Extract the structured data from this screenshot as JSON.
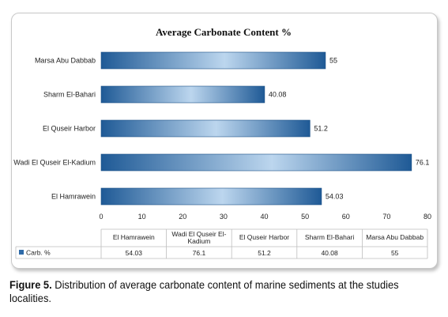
{
  "chart_data": {
    "type": "bar",
    "orientation": "horizontal",
    "title": "Average Carbonate Content  %",
    "categories": [
      "El Hamrawein",
      "Wadi El Quseir El-Kadium",
      "El Quseir Harbor",
      "Sharm El-Bahari",
      "Marsa Abu Dabbab"
    ],
    "table_categories": [
      [
        "El Hamrawein"
      ],
      [
        "Wadi El Quseir El-",
        "Kadium"
      ],
      [
        "El Quseir Harbor"
      ],
      [
        "Sharm El-Bahari"
      ],
      [
        "Marsa Abu Dabbab"
      ]
    ],
    "series": [
      {
        "name": "Carb. %",
        "values": [
          54.03,
          76.1,
          51.2,
          40.08,
          55
        ]
      }
    ],
    "value_labels": [
      "54.03",
      "76.1",
      "51.2",
      "40.08",
      "55"
    ],
    "xlim": [
      0,
      80
    ],
    "xticks": [
      0,
      10,
      20,
      30,
      40,
      50,
      60,
      70,
      80
    ],
    "grid": false,
    "data_table": true,
    "colors": {
      "bar_dark": "#1f5a96",
      "bar_light": "#bcd6ee",
      "legend_key": "#2e6aa8"
    }
  },
  "caption": {
    "label": "Figure 5.",
    "text": " Distribution of average carbonate content of marine sediments at the studies localities."
  }
}
